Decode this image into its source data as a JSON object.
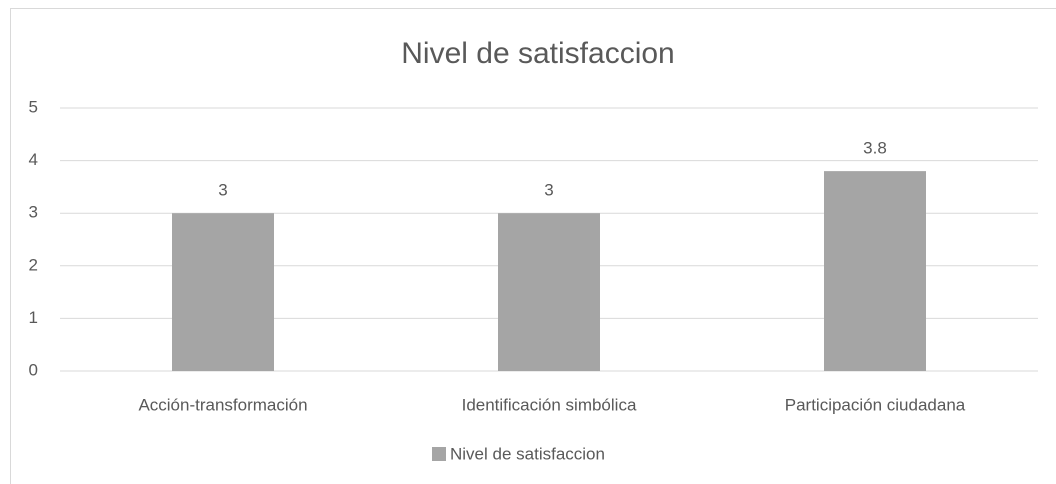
{
  "chart_data": {
    "type": "bar",
    "title": "Nivel de satisfaccion",
    "categories": [
      "Acción-transformación",
      "Identificación simbólica",
      "Participación ciudadana"
    ],
    "series": [
      {
        "name": "Nivel de satisfaccion",
        "color": "#a5a5a5",
        "values": [
          3,
          3,
          3.8
        ]
      }
    ],
    "ylim": [
      0,
      5
    ],
    "yticks": [
      0,
      1,
      2,
      3,
      4,
      5
    ],
    "grid": true,
    "legend": "bottom"
  }
}
